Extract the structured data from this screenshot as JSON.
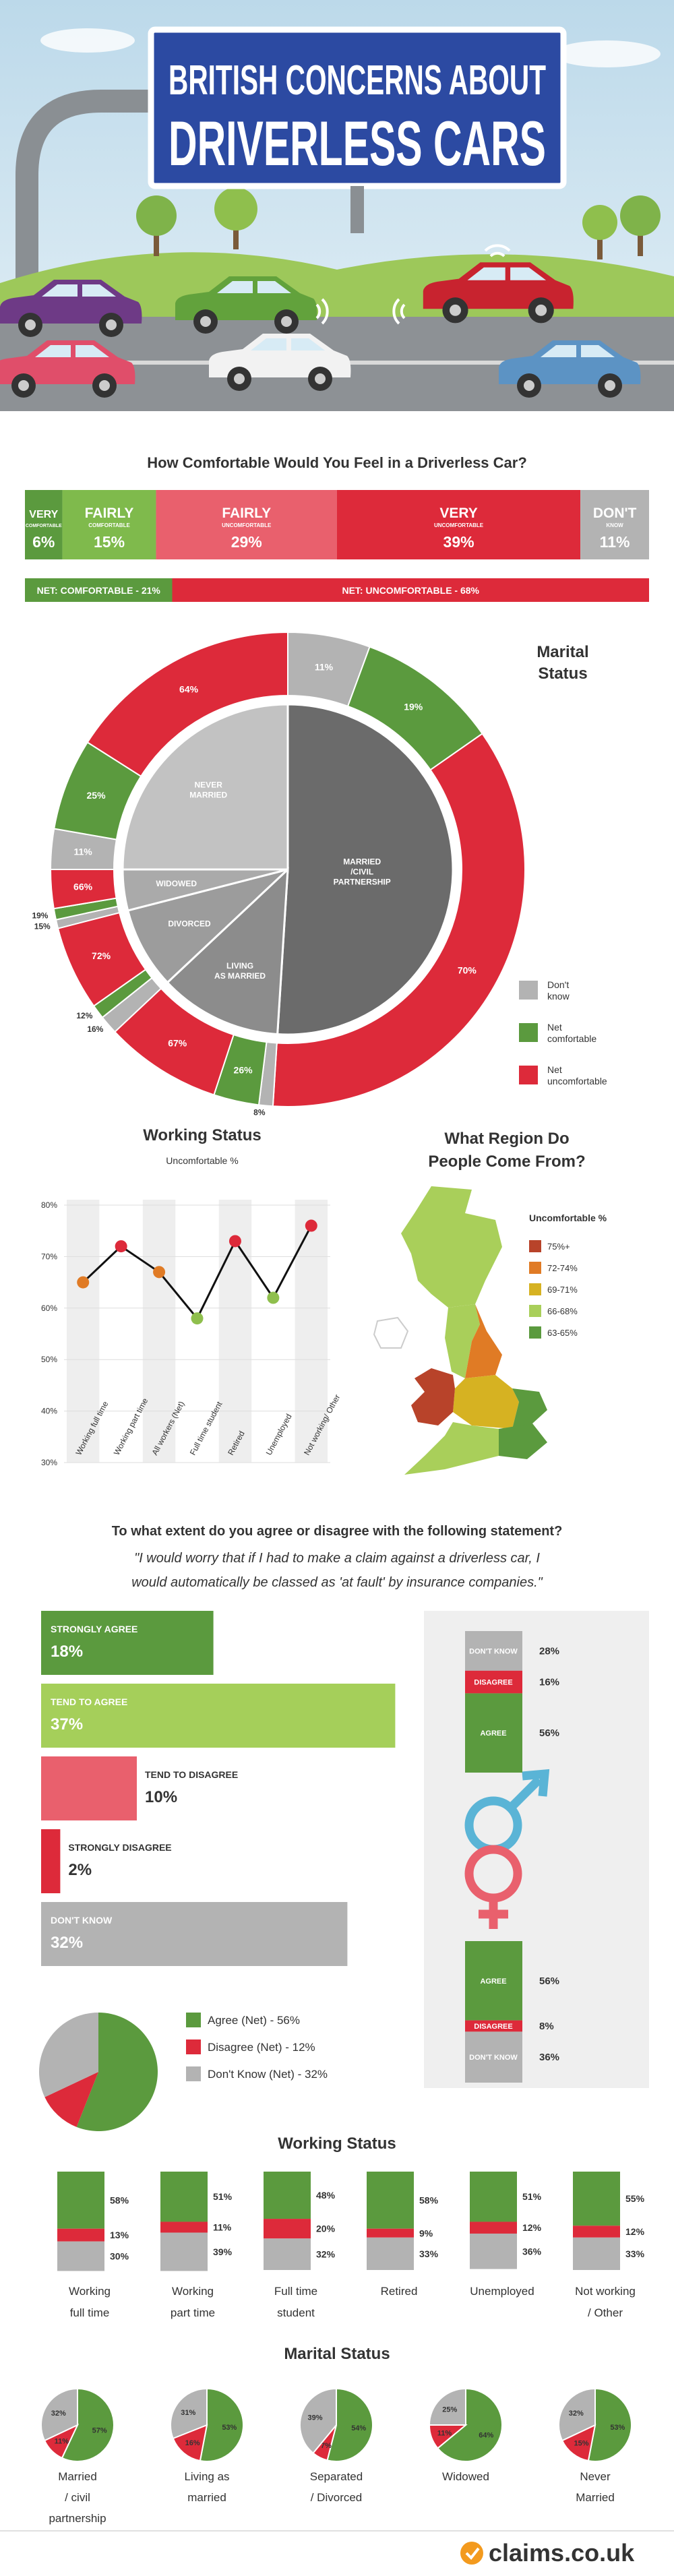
{
  "header": {
    "title_lines": [
      "BRITISH CONCERNS ABOUT",
      "DRIVERLESS CARS"
    ]
  },
  "comfort": {
    "type": "stacked-bar",
    "question": "How Comfortable Would You Feel in a Driverless Car?",
    "segments": [
      {
        "lines": [
          "VERY",
          "COMFORTABLE"
        ],
        "value": 6,
        "value_label": "6%",
        "color": "#5b9a3e"
      },
      {
        "lines": [
          "FAIRLY",
          "COMFORTABLE"
        ],
        "value": 15,
        "value_label": "15%",
        "color": "#7fba4c"
      },
      {
        "lines": [
          "FAIRLY",
          "UNCOMFORTABLE"
        ],
        "value": 29,
        "value_label": "29%",
        "color": "#e9606d"
      },
      {
        "lines": [
          "VERY",
          "UNCOMFORTABLE"
        ],
        "value": 39,
        "value_label": "39%",
        "color": "#dd2a3a"
      },
      {
        "lines": [
          "DON'T",
          "KNOW"
        ],
        "value": 11,
        "value_label": "11%",
        "color": "#b3b3b3"
      }
    ],
    "net": [
      {
        "label": "NET: COMFORTABLE - 21%",
        "value": 21,
        "color": "#5b9a3e"
      },
      {
        "label": "NET: UNCOMFORTABLE - 68%",
        "value": 68,
        "color": "#dd2a3a"
      }
    ]
  },
  "marital_donut": {
    "type": "donut",
    "title_lines": [
      "Marital",
      "Status"
    ],
    "ring_colors": [
      "#b3b3b3",
      "#5b9a3e",
      "#dd2a3a"
    ],
    "legend": [
      [
        "Don't",
        "know"
      ],
      [
        "Net",
        "comfortable"
      ],
      [
        "Net",
        "uncomfortable"
      ]
    ],
    "groups": [
      {
        "name": [
          "MARRIED",
          "/CIVIL",
          "PARTNERSHIP"
        ],
        "share": 51,
        "color": "#6b6b6b",
        "values": [
          11,
          19,
          70
        ],
        "value_labels": [
          "11%",
          "19%",
          "70%"
        ]
      },
      {
        "name": [
          "LIVING",
          "AS MARRIED"
        ],
        "share": 12,
        "color": "#8c8c8c",
        "values": [
          8,
          26,
          67
        ],
        "value_labels": [
          "8%",
          "26%",
          "67%"
        ]
      },
      {
        "name": [
          "DIVORCED"
        ],
        "share": 8,
        "color": "#9c9c9c",
        "values": [
          16,
          12,
          72
        ],
        "value_labels": [
          "16%",
          "12%",
          "72%"
        ]
      },
      {
        "name": [
          "WIDOWED"
        ],
        "share": 4,
        "color": "#aaaaaa",
        "values": [
          15,
          19,
          66
        ],
        "value_labels": [
          "15%",
          "19%",
          "66%"
        ]
      },
      {
        "name": [
          "NEVER",
          "MARRIED"
        ],
        "share": 25,
        "color": "#c2c2c2",
        "values": [
          11,
          25,
          64
        ],
        "value_labels": [
          "11%",
          "25%",
          "64%"
        ]
      }
    ]
  },
  "working_line": {
    "type": "line",
    "title": "Working Status",
    "subtitle": "Uncomfortable %",
    "categories": [
      "Working full time",
      "Working part time",
      "All workers (Net)",
      "Full time student",
      "Retired",
      "Unemployed",
      "Not working/ Other"
    ],
    "values": [
      65,
      72,
      67,
      58,
      73,
      62,
      76
    ],
    "point_colors": [
      "#e07b25",
      "#dd2a3a",
      "#e07b25",
      "#8fbf4d",
      "#dd2a3a",
      "#8fbf4d",
      "#dd2a3a"
    ],
    "ylim": [
      30,
      80
    ],
    "yticks": [
      {
        "value": 30,
        "label": "30%"
      },
      {
        "value": 40,
        "label": "40%"
      },
      {
        "value": 50,
        "label": "50%"
      },
      {
        "value": 60,
        "label": "60%"
      },
      {
        "value": 70,
        "label": "70%"
      },
      {
        "value": 80,
        "label": "80%"
      }
    ]
  },
  "region_map": {
    "title_lines": [
      "What Region Do",
      "People Come From?"
    ],
    "legend_title": "Uncomfortable %",
    "legend": [
      {
        "label": "75%+",
        "color": "#b8432a"
      },
      {
        "label": "72-74%",
        "color": "#e07b25"
      },
      {
        "label": "69-71%",
        "color": "#d6b222"
      },
      {
        "label": "66-68%",
        "color": "#a9cf5a"
      },
      {
        "label": "63-65%",
        "color": "#5b9a3e"
      }
    ]
  },
  "statement": {
    "question": "To what extent do you agree or disagree with the following statement?",
    "quote_lines": [
      "\"I would worry that if I had to make a claim against a driverless car, I",
      "would automatically be classed as 'at fault' by insurance companies.\""
    ],
    "bars": [
      {
        "label": "STRONGLY AGREE",
        "value": 18,
        "value_label": "18%",
        "color": "#5b9a3e"
      },
      {
        "label": "TEND TO AGREE",
        "value": 37,
        "value_label": "37%",
        "color": "#a5cf5a"
      },
      {
        "label": "TEND TO DISAGREE",
        "value": 10,
        "value_label": "10%",
        "color": "#e9606d"
      },
      {
        "label": "STRONGLY DISAGREE",
        "value": 2,
        "value_label": "2%",
        "color": "#dd2a3a"
      },
      {
        "label": "DON'T KNOW",
        "value": 32,
        "value_label": "32%",
        "color": "#b3b3b3"
      }
    ],
    "male": [
      {
        "label": "DON'T KNOW",
        "value": 28,
        "value_label": "28%",
        "color": "#b3b3b3"
      },
      {
        "label": "DISAGREE",
        "value": 16,
        "value_label": "16%",
        "color": "#dd2a3a"
      },
      {
        "label": "AGREE",
        "value": 56,
        "value_label": "56%",
        "color": "#5b9a3e"
      }
    ],
    "female": [
      {
        "label": "AGREE",
        "value": 56,
        "value_label": "56%",
        "color": "#5b9a3e"
      },
      {
        "label": "DISAGREE",
        "value": 8,
        "value_label": "8%",
        "color": "#dd2a3a"
      },
      {
        "label": "DON'T KNOW",
        "value": 36,
        "value_label": "36%",
        "color": "#b3b3b3"
      }
    ],
    "pie": {
      "type": "pie",
      "legend": [
        "Agree (Net) - 56%",
        "Disagree (Net) - 12%",
        "Don't Know (Net) - 32%"
      ],
      "values": [
        56,
        12,
        32
      ],
      "colors": [
        "#5b9a3e",
        "#dd2a3a",
        "#b3b3b3"
      ]
    }
  },
  "working_groups": {
    "type": "stacked-bar",
    "title": "Working Status",
    "colors": [
      "#5b9a3e",
      "#dd2a3a",
      "#b3b3b3"
    ],
    "groups": [
      {
        "name": [
          "Working",
          "full time"
        ],
        "values": [
          58,
          13,
          30
        ],
        "value_labels": [
          "58%",
          "13%",
          "30%"
        ]
      },
      {
        "name": [
          "Working",
          "part time"
        ],
        "values": [
          51,
          11,
          39
        ],
        "value_labels": [
          "51%",
          "11%",
          "39%"
        ]
      },
      {
        "name": [
          "Full time",
          "student"
        ],
        "values": [
          48,
          20,
          32
        ],
        "value_labels": [
          "48%",
          "20%",
          "32%"
        ]
      },
      {
        "name": [
          "Retired"
        ],
        "values": [
          58,
          9,
          33
        ],
        "value_labels": [
          "58%",
          "9%",
          "33%"
        ]
      },
      {
        "name": [
          "Unemployed"
        ],
        "values": [
          51,
          12,
          36
        ],
        "value_labels": [
          "51%",
          "12%",
          "36%"
        ]
      },
      {
        "name": [
          "Not working",
          "/ Other"
        ],
        "values": [
          55,
          12,
          33
        ],
        "value_labels": [
          "55%",
          "12%",
          "33%"
        ]
      }
    ]
  },
  "marital_pies": {
    "type": "pie",
    "title": "Marital Status",
    "colors": [
      "#5b9a3e",
      "#dd2a3a",
      "#b3b3b3"
    ],
    "groups": [
      {
        "name": [
          "Married",
          "/ civil",
          "partnership"
        ],
        "values": [
          57,
          11,
          32
        ],
        "value_labels": [
          "57%",
          "11%",
          "32%"
        ]
      },
      {
        "name": [
          "Living as",
          "married"
        ],
        "values": [
          53,
          16,
          31
        ],
        "value_labels": [
          "53%",
          "16%",
          "31%"
        ]
      },
      {
        "name": [
          "Separated",
          "/ Divorced"
        ],
        "values": [
          54,
          7,
          39
        ],
        "value_labels": [
          "54%",
          "7%",
          "39%"
        ]
      },
      {
        "name": [
          "Widowed"
        ],
        "values": [
          64,
          11,
          25
        ],
        "value_labels": [
          "64%",
          "11%",
          "25%"
        ]
      },
      {
        "name": [
          "Never",
          "Married"
        ],
        "values": [
          53,
          15,
          32
        ],
        "value_labels": [
          "53%",
          "15%",
          "32%"
        ]
      }
    ]
  },
  "footer": {
    "logo": "claims.co.uk"
  }
}
